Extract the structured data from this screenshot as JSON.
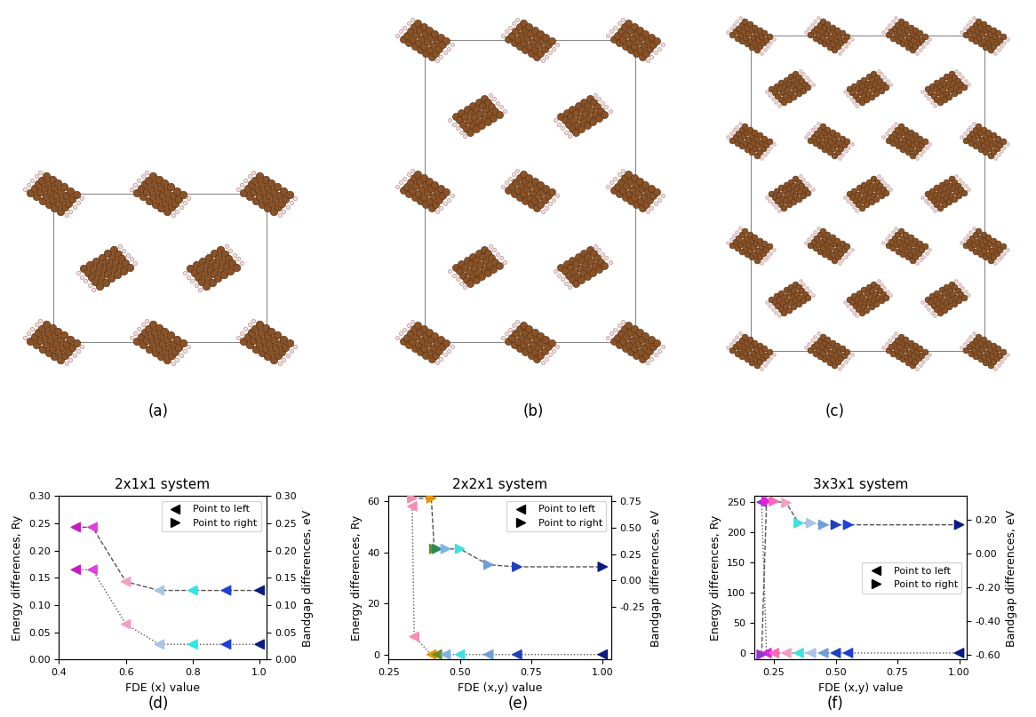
{
  "panel_labels": [
    "(a)",
    "(b)",
    "(c)",
    "(d)",
    "(e)",
    "(f)"
  ],
  "chart_data": [
    {
      "type": "scatter",
      "title": "2x1x1 system",
      "x_label": "FDE (x) value",
      "y_label": "Energy differences, Ry",
      "y2_label": "Bandgap differences, eV",
      "xlim": [
        0.4,
        1.02
      ],
      "xticks": [
        0.4,
        0.6,
        0.8,
        1.0
      ],
      "ylim": [
        0,
        0.3
      ],
      "yticks": [
        {
          "value": 0,
          "label": "0.00"
        },
        {
          "value": 0.05,
          "label": "0.05"
        },
        {
          "value": 0.1,
          "label": "0.10"
        },
        {
          "value": 0.15,
          "label": "0.15"
        },
        {
          "value": 0.2,
          "label": "0.20"
        },
        {
          "value": 0.25,
          "label": "0.25"
        },
        {
          "value": 0.3,
          "label": "0.30"
        }
      ],
      "y2lim": [
        0,
        0.3
      ],
      "y2ticks": [
        {
          "value": 0,
          "label": "0.00"
        },
        {
          "value": 0.05,
          "label": "0.05"
        },
        {
          "value": 0.1,
          "label": "0.10"
        },
        {
          "value": 0.15,
          "label": "0.15"
        },
        {
          "value": 0.2,
          "label": "0.20"
        },
        {
          "value": 0.25,
          "label": "0.25"
        },
        {
          "value": 0.3,
          "label": "0.30"
        }
      ],
      "legend": "upper right",
      "legend_entries": [
        {
          "name": "Point to left",
          "marker": "triangle_left",
          "color": "black"
        },
        {
          "name": "Point to right",
          "marker": "triangle_right",
          "color": "black"
        }
      ],
      "series": [
        {
          "axis": "y",
          "line_style": "dotted",
          "marker": "triangle_left",
          "x": [
            0.45,
            0.5,
            0.6,
            0.7,
            0.8,
            0.9,
            1.0
          ],
          "values": [
            0.165,
            0.165,
            0.065,
            0.028,
            0.028,
            0.028,
            0.028
          ],
          "colors": [
            "#c51bc5",
            "#e040e0",
            "#f0a0c8",
            "#a9c4e6",
            "#2ee6e6",
            "#1f3fd6",
            "#0a1a80"
          ]
        },
        {
          "axis": "y2",
          "line_style": "dashed",
          "marker": "triangle_left",
          "x": [
            0.45,
            0.5,
            0.6,
            0.7,
            0.8,
            0.9,
            1.0
          ],
          "values": [
            0.243,
            0.243,
            0.143,
            0.127,
            0.127,
            0.127,
            0.127
          ],
          "colors": [
            "#c51bc5",
            "#e040e0",
            "#f0a0c8",
            "#a9c4e6",
            "#2ee6e6",
            "#1f3fd6",
            "#0a1a80"
          ]
        }
      ]
    },
    {
      "type": "scatter",
      "title": "2x2x1 system",
      "x_label": "FDE (x,y) value",
      "y_label": "Energy differences, Ry",
      "y2_label": "Bandgap differences, eV",
      "xlim": [
        0.25,
        1.03
      ],
      "xticks": [
        0.25,
        {
          "value": 0.5,
          "label": "0.50"
        },
        0.75,
        {
          "value": 1.0,
          "label": "1.00"
        }
      ],
      "ylim": [
        -2,
        62
      ],
      "yticks": [
        0,
        20,
        40,
        60
      ],
      "y2lim": [
        -0.75,
        0.8
      ],
      "y2ticks": [
        {
          "value": -0.25,
          "label": "-0.25"
        },
        {
          "value": 0,
          "label": "0.00"
        },
        {
          "value": 0.25,
          "label": "0.25"
        },
        {
          "value": 0.5,
          "label": "0.50"
        },
        {
          "value": 0.75,
          "label": "0.75"
        }
      ],
      "legend": "upper right",
      "legend_entries": [
        {
          "name": "Point to left",
          "marker": "triangle_left",
          "color": "black"
        },
        {
          "name": "Point to right",
          "marker": "triangle_right",
          "color": "black"
        }
      ],
      "series": [
        {
          "axis": "y",
          "line_style": "dotted",
          "marker": "triangle_left",
          "x": [
            0.333,
            0.34,
            0.4,
            0.42,
            0.45,
            0.5,
            0.6,
            0.7,
            1.0
          ],
          "values": [
            58,
            7,
            0,
            0,
            0,
            0,
            0,
            0,
            0
          ],
          "colors": [
            "#f48fb1",
            "#f48fb1",
            "#e69500",
            "#6b8e23",
            "#7fb3e6",
            "#40e0e0",
            "#6f9fd8",
            "#2040c0",
            "#0a1a80"
          ]
        },
        {
          "axis": "y2",
          "line_style": "dashed",
          "marker": "triangle_right",
          "x": [
            0.333,
            0.4,
            0.41,
            0.42,
            0.45,
            0.5,
            0.6,
            0.7,
            1.0
          ],
          "values": [
            0.78,
            0.78,
            0.3,
            0.3,
            0.3,
            0.3,
            0.15,
            0.13,
            0.13
          ],
          "colors": [
            "#f48fb1",
            "#e69500",
            "#6b8e23",
            "#2e8b57",
            "#7fb3e6",
            "#40e0e0",
            "#6f9fd8",
            "#2040c0",
            "#0a1a80"
          ]
        }
      ]
    },
    {
      "type": "scatter",
      "title": "3x3x1 system",
      "x_label": "FDE (x,y) value",
      "y_label": "Energy differences, Ry",
      "y2_label": "Bandgap differences, eV",
      "xlim": [
        0.17,
        1.03
      ],
      "xticks": [
        0.25,
        {
          "value": 0.5,
          "label": "0.50"
        },
        0.75,
        {
          "value": 1.0,
          "label": "1.00"
        }
      ],
      "ylim": [
        -11,
        260
      ],
      "yticks": [
        0,
        50,
        100,
        150,
        200,
        250
      ],
      "y2lim": [
        -0.63,
        0.34
      ],
      "y2ticks": [
        {
          "value": -0.6,
          "label": "-0.60"
        },
        {
          "value": -0.4,
          "label": "-0.40"
        },
        {
          "value": -0.2,
          "label": "-0.20"
        },
        {
          "value": 0,
          "label": "0.00"
        },
        {
          "value": 0.2,
          "label": "0.20"
        }
      ],
      "legend": "center right",
      "legend_entries": [
        {
          "name": "Point to left",
          "marker": "triangle_left",
          "color": "black"
        },
        {
          "name": "Point to right",
          "marker": "triangle_right",
          "color": "black"
        }
      ],
      "series": [
        {
          "axis": "y",
          "line_style": "dotted",
          "marker": "triangle_left",
          "x": [
            0.2,
            0.22,
            0.25,
            0.3,
            0.35,
            0.4,
            0.45,
            0.5,
            0.55,
            1.0
          ],
          "values": [
            250,
            0,
            0,
            0,
            0,
            0,
            0,
            0,
            0,
            0
          ],
          "colors": [
            "#9b30d0",
            "#e020e0",
            "#ff69b4",
            "#f0a0c8",
            "#40e0e0",
            "#a9c4e6",
            "#6f9fd8",
            "#2040c0",
            "#1f3fd6",
            "#0a1a80"
          ]
        },
        {
          "axis": "y2",
          "line_style": "dashed",
          "marker": "triangle_right",
          "x": [
            0.2,
            0.22,
            0.25,
            0.3,
            0.35,
            0.4,
            0.45,
            0.5,
            0.55,
            1.0
          ],
          "values": [
            -0.6,
            0.31,
            0.31,
            0.3,
            0.18,
            0.18,
            0.17,
            0.17,
            0.17,
            0.17
          ],
          "colors": [
            "#9b30d0",
            "#e020e0",
            "#ff69b4",
            "#f0a0c8",
            "#40e0e0",
            "#a9c4e6",
            "#6f9fd8",
            "#2040c0",
            "#1f3fd6",
            "#0a1a80"
          ]
        }
      ]
    }
  ]
}
